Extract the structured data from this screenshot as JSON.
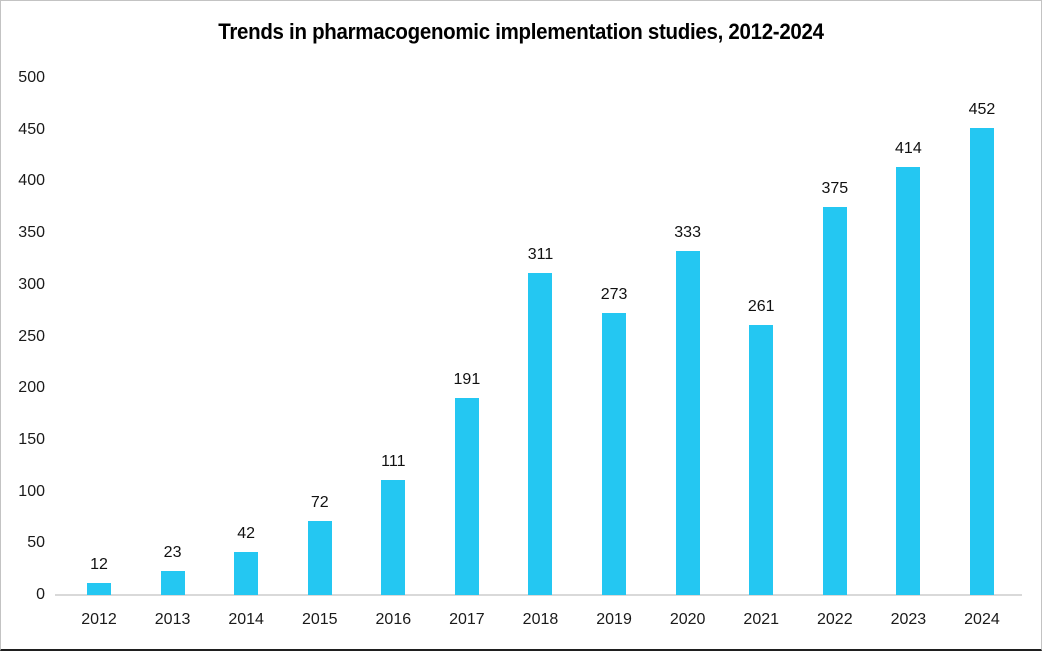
{
  "chart_data": {
    "type": "bar",
    "title": "Trends in pharmacogenomic implementation studies, 2012-2024",
    "categories": [
      "2012",
      "2013",
      "2014",
      "2015",
      "2016",
      "2017",
      "2018",
      "2019",
      "2020",
      "2021",
      "2022",
      "2023",
      "2024"
    ],
    "values": [
      12,
      23,
      42,
      72,
      111,
      191,
      311,
      273,
      333,
      261,
      375,
      414,
      452
    ],
    "xlabel": "",
    "ylabel": "",
    "ylim": [
      0,
      500
    ],
    "ytick_step": 50,
    "yticks": [
      "0",
      "50",
      "100",
      "150",
      "200",
      "250",
      "300",
      "350",
      "400",
      "450",
      "500"
    ],
    "grid": false,
    "legend": "none",
    "data_labels": true,
    "colors": {
      "bar": "#24c7f2",
      "axis_line": "#d9d9d9",
      "label_text": "#111111",
      "title_text": "#000000",
      "background": "#ffffff"
    }
  }
}
